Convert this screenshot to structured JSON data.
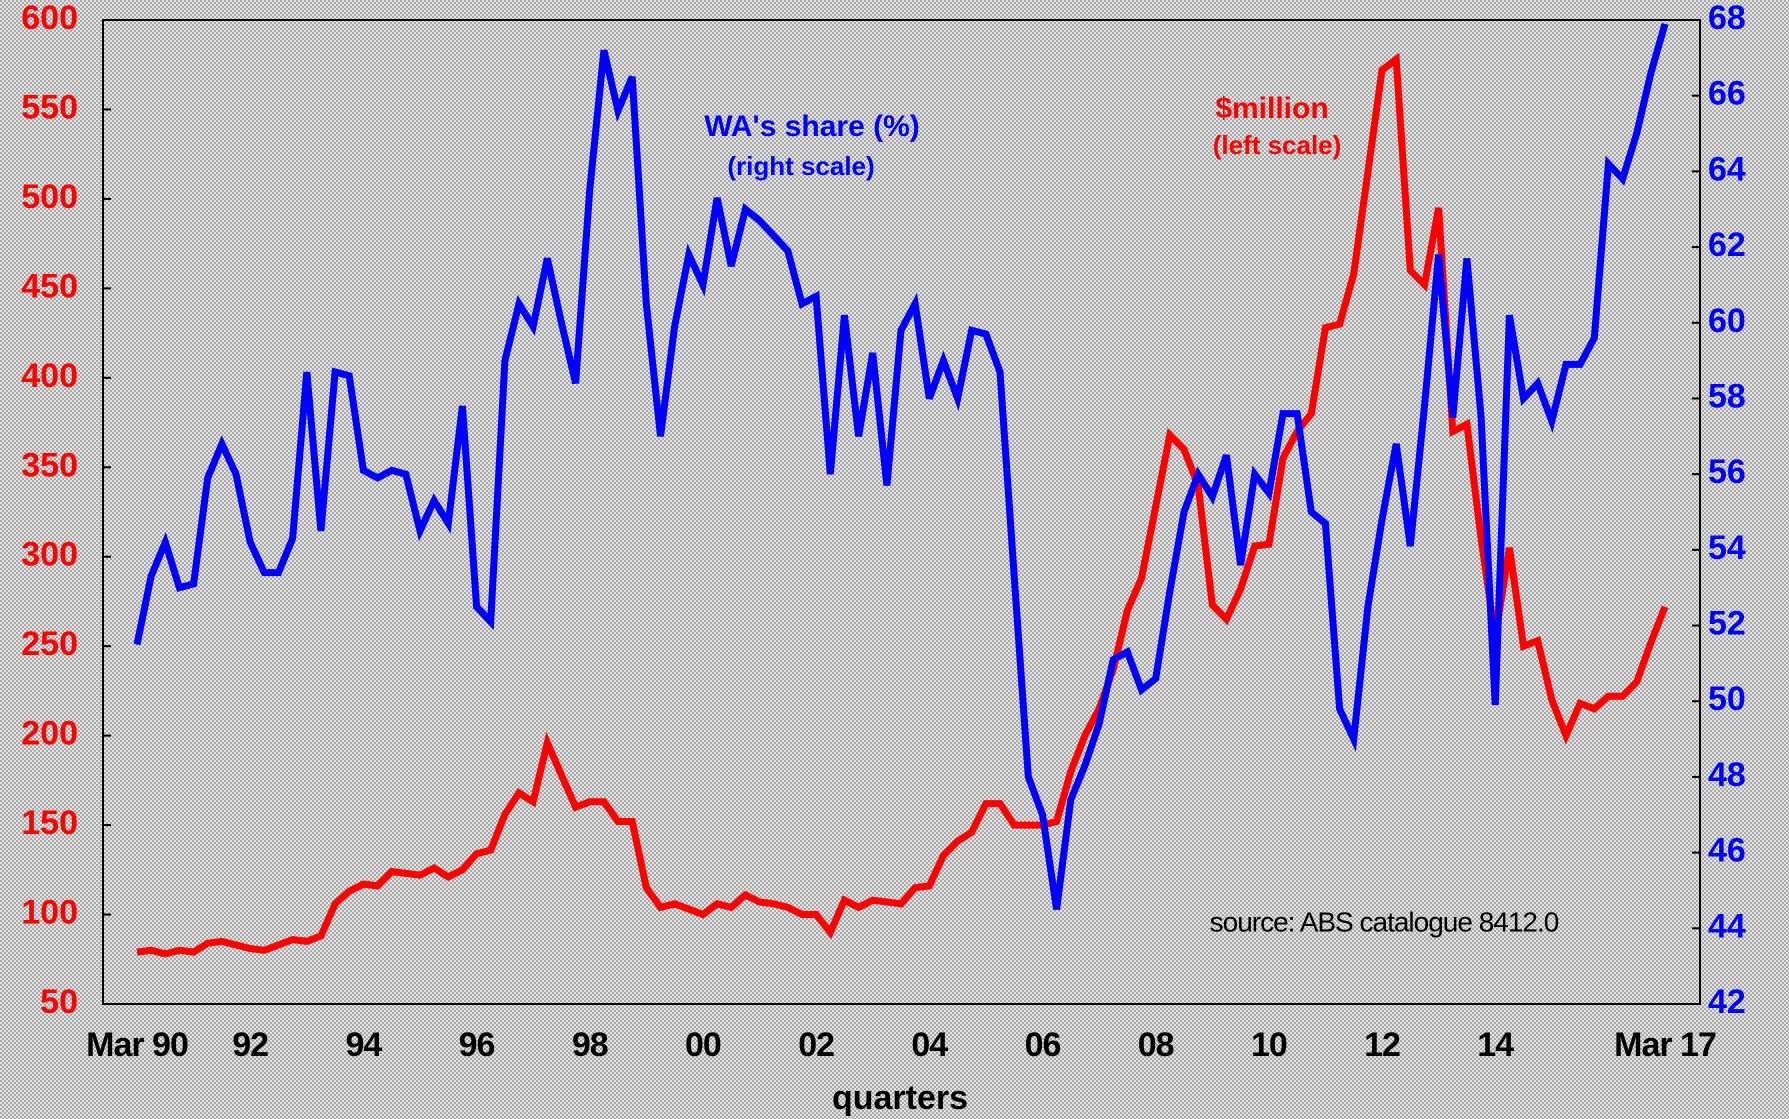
{
  "chart_data": {
    "type": "line",
    "annotations": [
      "WA's share (%)",
      "(right scale)",
      "$million",
      "(left scale)",
      "source: ABS catalogue 8412.0"
    ],
    "xlabel": "quarters",
    "categories": [
      "Mar 90",
      null,
      null,
      null,
      null,
      null,
      null,
      null,
      "92",
      null,
      null,
      null,
      null,
      null,
      null,
      null,
      "94",
      null,
      null,
      null,
      null,
      null,
      null,
      null,
      "96",
      null,
      null,
      null,
      null,
      null,
      null,
      null,
      "98",
      null,
      null,
      null,
      null,
      null,
      null,
      null,
      "00",
      null,
      null,
      null,
      null,
      null,
      null,
      null,
      "02",
      null,
      null,
      null,
      null,
      null,
      null,
      null,
      "04",
      null,
      null,
      null,
      null,
      null,
      null,
      null,
      "06",
      null,
      null,
      null,
      null,
      null,
      null,
      null,
      "08",
      null,
      null,
      null,
      null,
      null,
      null,
      null,
      "10",
      null,
      null,
      null,
      null,
      null,
      null,
      null,
      "12",
      null,
      null,
      null,
      null,
      null,
      null,
      null,
      "14",
      null,
      null,
      null,
      null,
      null,
      null,
      null,
      null,
      null,
      null,
      null,
      "Mar 17"
    ],
    "series": [
      {
        "name": "$million",
        "color": "#ff0000",
        "axis": "y",
        "values": [
          79,
          80,
          78,
          80,
          79,
          84,
          85,
          83,
          81,
          80,
          83,
          86,
          85,
          88,
          106,
          113,
          117,
          116,
          124,
          123,
          122,
          126,
          121,
          125,
          134,
          136,
          156,
          168,
          163,
          196,
          178,
          160,
          163,
          163,
          152,
          152,
          115,
          104,
          106,
          103,
          100,
          106,
          104,
          111,
          107,
          106,
          104,
          100,
          100,
          90,
          108,
          104,
          108,
          107,
          106,
          115,
          116,
          133,
          141,
          146,
          162,
          162,
          150,
          150,
          150,
          152,
          180,
          200,
          215,
          237,
          270,
          288,
          328,
          368,
          360,
          340,
          273,
          265,
          282,
          306,
          307,
          355,
          370,
          380,
          428,
          430,
          458,
          515,
          572,
          578,
          460,
          452,
          495,
          370,
          374,
          310,
          255,
          305,
          250,
          253,
          220,
          200,
          218,
          215,
          222,
          222,
          230,
          252,
          272
        ]
      },
      {
        "name": "WA's share (%)",
        "color": "#0000ff",
        "axis": "y2",
        "values": [
          51.5,
          53.3,
          54.2,
          53.0,
          53.1,
          55.9,
          56.8,
          56.0,
          54.2,
          53.4,
          53.4,
          54.3,
          58.7,
          54.5,
          58.7,
          58.6,
          56.1,
          55.9,
          56.1,
          56.0,
          54.5,
          55.3,
          54.7,
          57.8,
          52.5,
          52.1,
          59.0,
          60.5,
          59.9,
          61.7,
          60.0,
          58.4,
          63.5,
          67.2,
          65.6,
          66.5,
          60.5,
          57.0,
          59.9,
          61.8,
          61.0,
          63.3,
          61.5,
          63.0,
          62.7,
          62.3,
          61.9,
          60.5,
          60.7,
          56.0,
          60.2,
          57.0,
          59.2,
          55.7,
          59.8,
          60.5,
          58.0,
          59.0,
          58.0,
          59.8,
          59.7,
          58.7,
          53.3,
          48.0,
          47.0,
          44.5,
          47.4,
          48.3,
          49.4,
          51.1,
          51.3,
          50.3,
          50.6,
          52.9,
          55.0,
          56.0,
          55.4,
          56.5,
          53.6,
          56.0,
          55.5,
          57.6,
          57.6,
          55.0,
          54.7,
          49.8,
          49.0,
          52.5,
          54.8,
          56.8,
          54.1,
          57.8,
          61.8,
          57.5,
          61.7,
          57.5,
          49.9,
          60.2,
          58.0,
          58.4,
          57.4,
          58.9,
          58.9,
          59.6,
          64.2,
          63.8,
          65.0,
          66.6,
          67.9
        ]
      }
    ],
    "ylim": [
      50,
      600
    ],
    "yticks": [
      50,
      100,
      150,
      200,
      250,
      300,
      350,
      400,
      450,
      500,
      550,
      600
    ],
    "y2lim": [
      42,
      68
    ],
    "y2ticks": [
      42,
      44,
      46,
      48,
      50,
      52,
      54,
      56,
      58,
      60,
      62,
      64,
      66,
      68
    ],
    "grid": false
  }
}
